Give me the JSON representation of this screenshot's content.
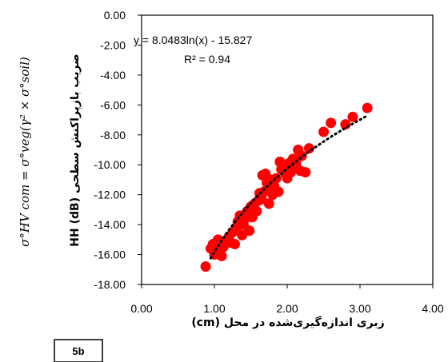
{
  "chart_data": {
    "type": "scatter",
    "xlabel": "زبری اندازه‌گیری‌شده در محل (cm)",
    "ylabel": "ضریب بازپراکنش سطحی HH (dB)",
    "side_formula": "σ°HV com = σ°veg(γ² × σ°soil)",
    "panel_label": "5b",
    "xlim": [
      0,
      4
    ],
    "ylim": [
      -18,
      0
    ],
    "x_ticks": [
      "0.00",
      "1.00",
      "2.00",
      "3.00",
      "4.00"
    ],
    "y_ticks": [
      "0.00",
      "-2.00",
      "-4.00",
      "-6.00",
      "-8.00",
      "-10.00",
      "-12.00",
      "-14.00",
      "-16.00",
      "-18.00"
    ],
    "grid": false,
    "marker_color": "#ff0000",
    "trendline": {
      "type": "log",
      "a": 8.0483,
      "b": -15.827,
      "x_range": [
        0.95,
        3.1
      ],
      "style": "dotted",
      "color": "#000000",
      "equation_text": "y = 8.0483ln(x) - 15.827",
      "r2_text": "R² = 0.94"
    },
    "series": [
      {
        "points": [
          [
            0.88,
            -16.8
          ],
          [
            0.95,
            -15.6
          ],
          [
            0.98,
            -15.3
          ],
          [
            1.0,
            -16.0
          ],
          [
            1.02,
            -15.4
          ],
          [
            1.05,
            -15.0
          ],
          [
            1.08,
            -15.8
          ],
          [
            1.1,
            -16.1
          ],
          [
            1.12,
            -15.5
          ],
          [
            1.15,
            -15.2
          ],
          [
            1.2,
            -14.8
          ],
          [
            1.22,
            -15.2
          ],
          [
            1.25,
            -14.5
          ],
          [
            1.28,
            -15.3
          ],
          [
            1.3,
            -14.3
          ],
          [
            1.32,
            -13.8
          ],
          [
            1.35,
            -13.4
          ],
          [
            1.38,
            -14.7
          ],
          [
            1.4,
            -14.0
          ],
          [
            1.42,
            -13.6
          ],
          [
            1.45,
            -13.1
          ],
          [
            1.48,
            -14.4
          ],
          [
            1.5,
            -12.8
          ],
          [
            1.52,
            -13.5
          ],
          [
            1.55,
            -12.6
          ],
          [
            1.58,
            -13.1
          ],
          [
            1.6,
            -12.4
          ],
          [
            1.62,
            -11.9
          ],
          [
            1.65,
            -12.3
          ],
          [
            1.66,
            -10.7
          ],
          [
            1.68,
            -11.8
          ],
          [
            1.7,
            -10.6
          ],
          [
            1.72,
            -11.2
          ],
          [
            1.74,
            -11.6
          ],
          [
            1.75,
            -12.6
          ],
          [
            1.78,
            -11.0
          ],
          [
            1.8,
            -12.0
          ],
          [
            1.82,
            -11.4
          ],
          [
            1.85,
            -10.9
          ],
          [
            1.88,
            -11.8
          ],
          [
            1.9,
            -9.8
          ],
          [
            1.92,
            -10.3
          ],
          [
            1.95,
            -10.0
          ],
          [
            1.98,
            -10.6
          ],
          [
            2.0,
            -10.9
          ],
          [
            2.02,
            -9.9
          ],
          [
            2.05,
            -10.5
          ],
          [
            2.08,
            -9.6
          ],
          [
            2.1,
            -10.2
          ],
          [
            2.12,
            -9.9
          ],
          [
            2.15,
            -9.0
          ],
          [
            2.18,
            -10.4
          ],
          [
            2.2,
            -9.4
          ],
          [
            2.25,
            -10.5
          ],
          [
            2.3,
            -8.9
          ],
          [
            2.5,
            -7.8
          ],
          [
            2.6,
            -7.2
          ],
          [
            2.8,
            -7.3
          ],
          [
            2.9,
            -6.8
          ],
          [
            3.1,
            -6.2
          ]
        ]
      }
    ]
  }
}
